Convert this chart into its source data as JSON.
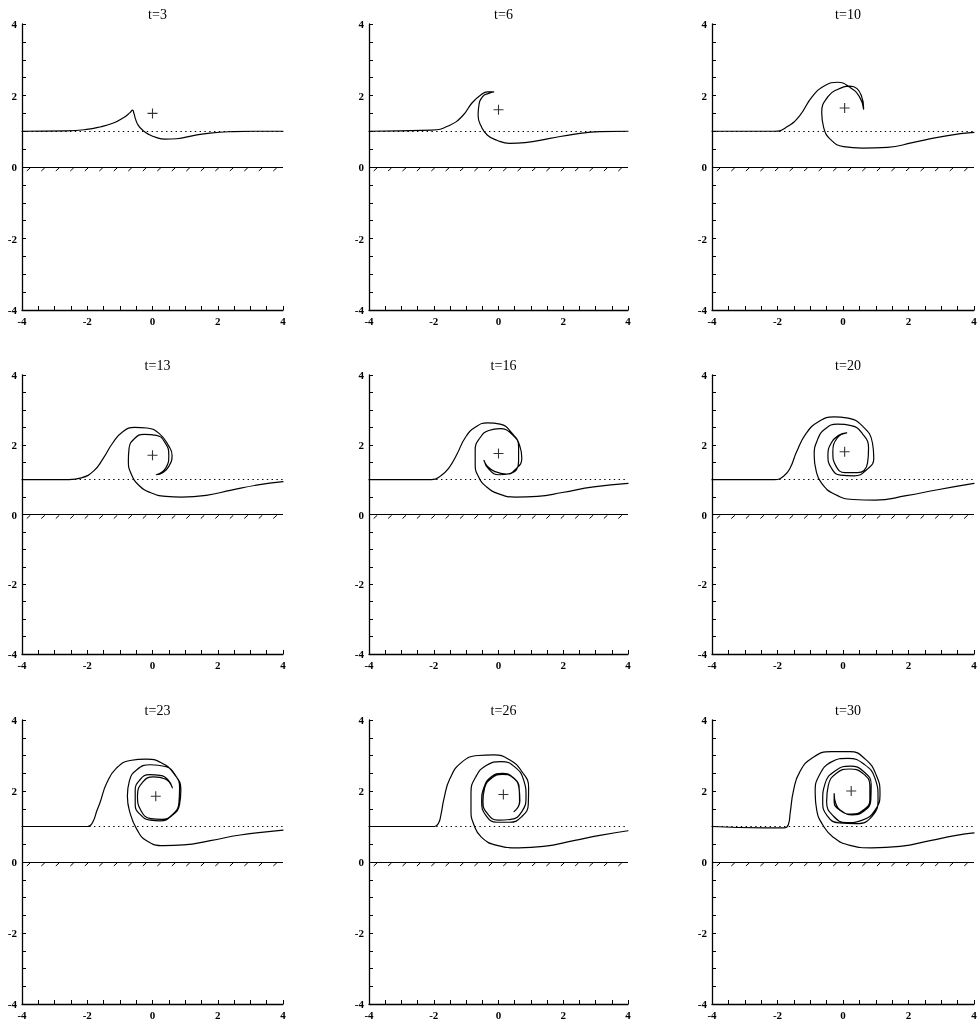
{
  "chart_data": [
    {
      "type": "line",
      "title": "t=3",
      "xlim": [
        -4,
        4
      ],
      "ylim": [
        -4,
        4
      ],
      "marker": "none",
      "xticks": [
        -4,
        {
          "value": -3.5,
          "label": null
        },
        {
          "value": -3,
          "label": null
        },
        {
          "value": -2.5,
          "label": null
        },
        -2,
        {
          "value": -1.5,
          "label": null
        },
        {
          "value": -1,
          "label": null
        },
        {
          "value": -0.5,
          "label": null
        },
        0,
        {
          "value": 0.5,
          "label": null
        },
        {
          "value": 1,
          "label": null
        },
        {
          "value": 1.5,
          "label": null
        },
        2,
        {
          "value": 2.5,
          "label": null
        },
        {
          "value": 3,
          "label": null
        },
        {
          "value": 3.5,
          "label": null
        },
        4
      ],
      "yticks": [
        -4,
        {
          "value": -3.5,
          "label": null
        },
        {
          "value": -3,
          "label": null
        },
        {
          "value": -2.5,
          "label": null
        },
        -2,
        {
          "value": -1.5,
          "label": null
        },
        {
          "value": -1,
          "label": null
        },
        {
          "value": -0.5,
          "label": null
        },
        0,
        {
          "value": 0.5,
          "label": null
        },
        {
          "value": 1,
          "label": null
        },
        {
          "value": 1.5,
          "label": null
        },
        2,
        {
          "value": 2.5,
          "label": null
        },
        {
          "value": 3,
          "label": null
        },
        {
          "value": 3.5,
          "label": null
        },
        4
      ],
      "series": [
        {
          "color": "#000000",
          "x": [
            -4,
            -2.63,
            -2.02,
            -1.61,
            -1.2,
            -0.89,
            -0.69,
            -0.61,
            -0.57,
            -0.52,
            -0.44,
            -0.3,
            -0.13,
            0.13,
            0.38,
            0.74,
            1.25,
            1.76,
            2.48,
            3.09,
            4
          ],
          "values": [
            1,
            1.01,
            1.05,
            1.12,
            1.23,
            1.38,
            1.52,
            1.59,
            1.5,
            1.34,
            1.17,
            1.03,
            0.92,
            0.82,
            0.78,
            0.79,
            0.88,
            0.95,
            0.99,
            1,
            1
          ]
        },
        {
          "type": "scatter",
          "marker": "cross",
          "color": "#000000",
          "x": [
            0
          ],
          "values": [
            1.5
          ]
        }
      ],
      "ref_lines": [
        {
          "axis": "y",
          "value": 1,
          "line_style": "dotted"
        },
        {
          "axis": "y",
          "value": 0,
          "line_style": "solid"
        }
      ]
    },
    {
      "type": "line",
      "title": "t=6",
      "xlim": [
        -4,
        4
      ],
      "ylim": [
        -4,
        4
      ],
      "marker": "none",
      "xticks": [
        -4,
        {
          "value": -3.5,
          "label": null
        },
        {
          "value": -3,
          "label": null
        },
        {
          "value": -2.5,
          "label": null
        },
        -2,
        {
          "value": -1.5,
          "label": null
        },
        {
          "value": -1,
          "label": null
        },
        {
          "value": -0.5,
          "label": null
        },
        0,
        {
          "value": 0.5,
          "label": null
        },
        {
          "value": 1,
          "label": null
        },
        {
          "value": 1.5,
          "label": null
        },
        2,
        {
          "value": 2.5,
          "label": null
        },
        {
          "value": 3,
          "label": null
        },
        {
          "value": 3.5,
          "label": null
        },
        4
      ],
      "yticks": [
        -4,
        {
          "value": -3.5,
          "label": null
        },
        {
          "value": -3,
          "label": null
        },
        {
          "value": -2.5,
          "label": null
        },
        -2,
        {
          "value": -1.5,
          "label": null
        },
        {
          "value": -1,
          "label": null
        },
        {
          "value": -0.5,
          "label": null
        },
        0,
        {
          "value": 0.5,
          "label": null
        },
        {
          "value": 1,
          "label": null
        },
        {
          "value": 1.5,
          "label": null
        },
        2,
        {
          "value": 2.5,
          "label": null
        },
        {
          "value": 3,
          "label": null
        },
        {
          "value": 3.5,
          "label": null
        },
        4
      ],
      "series": [
        {
          "color": "#000000",
          "x": [
            -4,
            -2.07,
            -1.5,
            -1.1,
            -0.82,
            -0.53,
            -0.34,
            -0.15,
            -0.3,
            -0.49,
            -0.61,
            -0.63,
            -0.53,
            -0.34,
            -0.05,
            0.34,
            0.82,
            1.59,
            2.36,
            3.13,
            4
          ],
          "values": [
            1,
            1.03,
            1.17,
            1.44,
            1.79,
            2.03,
            2.1,
            2.1,
            2.06,
            1.97,
            1.7,
            1.44,
            1.13,
            0.89,
            0.75,
            0.66,
            0.68,
            0.8,
            0.92,
            0.99,
            1
          ]
        },
        {
          "type": "scatter",
          "marker": "cross",
          "color": "#000000",
          "x": [
            0
          ],
          "values": [
            1.6
          ]
        }
      ],
      "ref_lines": [
        {
          "axis": "y",
          "value": 1,
          "line_style": "dotted"
        },
        {
          "axis": "y",
          "value": 0,
          "line_style": "solid"
        }
      ]
    },
    {
      "type": "line",
      "title": "t=10",
      "xlim": [
        -4,
        4
      ],
      "ylim": [
        -4,
        4
      ],
      "marker": "none",
      "xticks": [
        -4,
        {
          "value": -3.5,
          "label": null
        },
        {
          "value": -3,
          "label": null
        },
        {
          "value": -2.5,
          "label": null
        },
        -2,
        {
          "value": -1.5,
          "label": null
        },
        {
          "value": -1,
          "label": null
        },
        {
          "value": -0.5,
          "label": null
        },
        0,
        {
          "value": 0.5,
          "label": null
        },
        {
          "value": 1,
          "label": null
        },
        {
          "value": 1.5,
          "label": null
        },
        2,
        {
          "value": 2.5,
          "label": null
        },
        {
          "value": 3,
          "label": null
        },
        {
          "value": 3.5,
          "label": null
        },
        4
      ],
      "yticks": [
        -4,
        {
          "value": -3.5,
          "label": null
        },
        {
          "value": -3,
          "label": null
        },
        {
          "value": -2.5,
          "label": null
        },
        -2,
        {
          "value": -1.5,
          "label": null
        },
        {
          "value": -1,
          "label": null
        },
        {
          "value": -0.5,
          "label": null
        },
        0,
        {
          "value": 0.5,
          "label": null
        },
        {
          "value": 1,
          "label": null
        },
        {
          "value": 1.5,
          "label": null
        },
        2,
        {
          "value": 2.5,
          "label": null
        },
        {
          "value": 3,
          "label": null
        },
        {
          "value": 3.5,
          "label": null
        },
        4
      ],
      "series": [
        {
          "color": "#000000",
          "x": [
            -4,
            -2.09,
            -1.7,
            -1.32,
            -0.94,
            -0.55,
            -0.17,
            0.21,
            0.5,
            0.63,
            0.56,
            0.21,
            -0.17,
            -0.46,
            -0.65,
            -0.59,
            -0.36,
            0.02,
            0.59,
            1.36,
            2.12,
            2.89,
            3.66,
            4
          ],
          "values": [
            1,
            1,
            1.13,
            1.44,
            1.97,
            2.28,
            2.37,
            2.23,
            1.97,
            1.62,
            2,
            2.26,
            2.17,
            1.97,
            1.53,
            1.1,
            0.75,
            0.57,
            0.53,
            0.55,
            0.68,
            0.83,
            0.94,
            0.97
          ]
        },
        {
          "type": "scatter",
          "marker": "cross",
          "color": "#000000",
          "x": [
            0.05
          ],
          "values": [
            1.65
          ]
        }
      ],
      "ref_lines": [
        {
          "axis": "y",
          "value": 1,
          "line_style": "dotted"
        },
        {
          "axis": "y",
          "value": 0,
          "line_style": "solid"
        }
      ]
    },
    {
      "type": "line",
      "title": "t=13",
      "xlim": [
        -4,
        4
      ],
      "ylim": [
        -4,
        4
      ],
      "marker": "none",
      "xticks": [
        -4,
        {
          "value": -3.5,
          "label": null
        },
        {
          "value": -3,
          "label": null
        },
        {
          "value": -2.5,
          "label": null
        },
        -2,
        {
          "value": -1.5,
          "label": null
        },
        {
          "value": -1,
          "label": null
        },
        {
          "value": -0.5,
          "label": null
        },
        0,
        {
          "value": 0.5,
          "label": null
        },
        {
          "value": 1,
          "label": null
        },
        {
          "value": 1.5,
          "label": null
        },
        2,
        {
          "value": 2.5,
          "label": null
        },
        {
          "value": 3,
          "label": null
        },
        {
          "value": 3.5,
          "label": null
        },
        4
      ],
      "yticks": [
        -4,
        {
          "value": -3.5,
          "label": null
        },
        {
          "value": -3,
          "label": null
        },
        {
          "value": -2.5,
          "label": null
        },
        -2,
        {
          "value": -1.5,
          "label": null
        },
        {
          "value": -1,
          "label": null
        },
        {
          "value": -0.5,
          "label": null
        },
        0,
        {
          "value": 0.5,
          "label": null
        },
        {
          "value": 1,
          "label": null
        },
        {
          "value": 1.5,
          "label": null
        },
        2,
        {
          "value": 2.5,
          "label": null
        },
        {
          "value": 3,
          "label": null
        },
        {
          "value": 3.5,
          "label": null
        },
        4
      ],
      "series": [
        {
          "color": "#000000",
          "x": [
            -4,
            -2.56,
            -2.18,
            -1.8,
            -1.51,
            -1.22,
            -0.93,
            -0.55,
            -0.17,
            0.21,
            0.5,
            0.6,
            0.5,
            0.31,
            0.12,
            0.41,
            0.5,
            0.39,
            0.12,
            -0.26,
            -0.55,
            -0.72,
            -0.74,
            -0.65,
            -0.42,
            -0.07,
            0.41,
            0.89,
            1.65,
            2.42,
            3.18,
            4
          ],
          "values": [
            1,
            1,
            1.05,
            1.25,
            1.61,
            2.05,
            2.36,
            2.5,
            2.48,
            2.32,
            1.96,
            1.7,
            1.38,
            1.2,
            1.14,
            1.34,
            1.7,
            2.05,
            2.27,
            2.3,
            2.18,
            1.88,
            1.52,
            1.16,
            0.84,
            0.63,
            0.52,
            0.5,
            0.55,
            0.7,
            0.84,
            0.94
          ]
        },
        {
          "type": "scatter",
          "marker": "cross",
          "color": "#000000",
          "x": [
            0
          ],
          "values": [
            1.7
          ]
        }
      ],
      "ref_lines": [
        {
          "axis": "y",
          "value": 1,
          "line_style": "dotted"
        },
        {
          "axis": "y",
          "value": 0,
          "line_style": "solid"
        }
      ]
    },
    {
      "type": "line",
      "title": "t=16",
      "xlim": [
        -4,
        4
      ],
      "ylim": [
        -4,
        4
      ],
      "marker": "none",
      "xticks": [
        -4,
        {
          "value": -3.5,
          "label": null
        },
        {
          "value": -3,
          "label": null
        },
        {
          "value": -2.5,
          "label": null
        },
        -2,
        {
          "value": -1.5,
          "label": null
        },
        {
          "value": -1,
          "label": null
        },
        {
          "value": -0.5,
          "label": null
        },
        0,
        {
          "value": 0.5,
          "label": null
        },
        {
          "value": 1,
          "label": null
        },
        {
          "value": 1.5,
          "label": null
        },
        2,
        {
          "value": 2.5,
          "label": null
        },
        {
          "value": 3,
          "label": null
        },
        {
          "value": 3.5,
          "label": null
        },
        4
      ],
      "yticks": [
        -4,
        {
          "value": -3.5,
          "label": null
        },
        {
          "value": -3,
          "label": null
        },
        {
          "value": -2.5,
          "label": null
        },
        -2,
        {
          "value": -1.5,
          "label": null
        },
        {
          "value": -1,
          "label": null
        },
        {
          "value": -0.5,
          "label": null
        },
        0,
        {
          "value": 0.5,
          "label": null
        },
        {
          "value": 1,
          "label": null
        },
        {
          "value": 1.5,
          "label": null
        },
        2,
        {
          "value": 2.5,
          "label": null
        },
        {
          "value": 3,
          "label": null
        },
        {
          "value": 3.5,
          "label": null
        },
        4
      ],
      "series": [
        {
          "color": "#000000",
          "x": [
            -4,
            -2.07,
            -1.78,
            -1.53,
            -1.3,
            -1.01,
            -0.72,
            -0.34,
            0.05,
            0.43,
            0.66,
            0.72,
            0.53,
            0.24,
            -0.11,
            -0.34,
            -0.45,
            -0.3,
            0.01,
            0.39,
            0.62,
            0.62,
            0.39,
            0.05,
            -0.3,
            -0.57,
            -0.72,
            -0.72,
            -0.61,
            -0.38,
            0.01,
            0.53,
            1.2,
            1.97,
            2.94,
            4
          ],
          "values": [
            1,
            1,
            1.11,
            1.34,
            1.7,
            2.23,
            2.5,
            2.63,
            2.59,
            2.32,
            1.96,
            1.61,
            1.3,
            1.16,
            1.23,
            1.38,
            1.55,
            1.3,
            1.14,
            1.18,
            1.52,
            1.96,
            2.32,
            2.46,
            2.41,
            2.2,
            1.84,
            1.43,
            1.07,
            0.8,
            0.59,
            0.5,
            0.52,
            0.63,
            0.79,
            0.89
          ]
        },
        {
          "type": "scatter",
          "marker": "cross",
          "color": "#000000",
          "x": [
            0
          ],
          "values": [
            1.75
          ]
        }
      ],
      "ref_lines": [
        {
          "axis": "y",
          "value": 1,
          "line_style": "dotted"
        },
        {
          "axis": "y",
          "value": 0,
          "line_style": "solid"
        }
      ]
    },
    {
      "type": "line",
      "title": "t=20",
      "xlim": [
        -4,
        4
      ],
      "ylim": [
        -4,
        4
      ],
      "marker": "none",
      "xticks": [
        -4,
        {
          "value": -3.5,
          "label": null
        },
        {
          "value": -3,
          "label": null
        },
        {
          "value": -2.5,
          "label": null
        },
        -2,
        {
          "value": -1.5,
          "label": null
        },
        {
          "value": -1,
          "label": null
        },
        {
          "value": -0.5,
          "label": null
        },
        0,
        {
          "value": 0.5,
          "label": null
        },
        {
          "value": 1,
          "label": null
        },
        {
          "value": 1.5,
          "label": null
        },
        2,
        {
          "value": 2.5,
          "label": null
        },
        {
          "value": 3,
          "label": null
        },
        {
          "value": 3.5,
          "label": null
        },
        4
      ],
      "yticks": [
        -4,
        {
          "value": -3.5,
          "label": null
        },
        {
          "value": -3,
          "label": null
        },
        {
          "value": -2.5,
          "label": null
        },
        -2,
        {
          "value": -1.5,
          "label": null
        },
        {
          "value": -1,
          "label": null
        },
        {
          "value": -0.5,
          "label": null
        },
        0,
        {
          "value": 0.5,
          "label": null
        },
        {
          "value": 1,
          "label": null
        },
        {
          "value": 1.5,
          "label": null
        },
        2,
        {
          "value": 2.5,
          "label": null
        },
        {
          "value": 3,
          "label": null
        },
        {
          "value": 3.5,
          "label": null
        },
        4
      ],
      "series": [
        {
          "color": "#000000",
          "x": [
            -4,
            -2.09,
            -1.8,
            -1.61,
            -1.42,
            -1.13,
            -0.75,
            -0.27,
            0.11,
            0.59,
            0.9,
            0.94,
            0.73,
            0.34,
            -0.08,
            -0.36,
            -0.46,
            -0.36,
            -0.13,
            0.11,
            -0.17,
            -0.31,
            -0.21,
            0.06,
            0.44,
            0.75,
            0.78,
            0.59,
            0.25,
            -0.17,
            -0.55,
            -0.78,
            -0.88,
            -0.82,
            -0.65,
            -0.27,
            0.31,
            0.98,
            1.93,
            2.89,
            4
          ],
          "values": [
            1,
            1,
            1.11,
            1.34,
            1.79,
            2.32,
            2.66,
            2.8,
            2.77,
            2.54,
            2.05,
            1.61,
            1.29,
            1.11,
            1.13,
            1.34,
            1.7,
            2.05,
            2.27,
            2.34,
            2.2,
            1.79,
            1.38,
            1.2,
            1.2,
            1.48,
            1.91,
            2.32,
            2.55,
            2.59,
            2.45,
            2.14,
            1.7,
            1.25,
            0.89,
            0.59,
            0.43,
            0.41,
            0.54,
            0.71,
            0.89
          ]
        },
        {
          "type": "scatter",
          "marker": "cross",
          "color": "#000000",
          "x": [
            0.05
          ],
          "values": [
            1.8
          ]
        }
      ],
      "ref_lines": [
        {
          "axis": "y",
          "value": 1,
          "line_style": "dotted"
        },
        {
          "axis": "y",
          "value": 0,
          "line_style": "solid"
        }
      ]
    },
    {
      "type": "line",
      "title": "t=23",
      "xlim": [
        -4,
        4
      ],
      "ylim": [
        -4,
        4
      ],
      "marker": "none",
      "xticks": [
        -4,
        {
          "value": -3.5,
          "label": null
        },
        {
          "value": -3,
          "label": null
        },
        {
          "value": -2.5,
          "label": null
        },
        -2,
        {
          "value": -1.5,
          "label": null
        },
        {
          "value": -1,
          "label": null
        },
        {
          "value": -0.5,
          "label": null
        },
        0,
        {
          "value": 0.5,
          "label": null
        },
        {
          "value": 1,
          "label": null
        },
        {
          "value": 1.5,
          "label": null
        },
        2,
        {
          "value": 2.5,
          "label": null
        },
        {
          "value": 3,
          "label": null
        },
        {
          "value": 3.5,
          "label": null
        },
        4
      ],
      "yticks": [
        -4,
        {
          "value": -3.5,
          "label": null
        },
        {
          "value": -3,
          "label": null
        },
        {
          "value": -2.5,
          "label": null
        },
        -2,
        {
          "value": -1.5,
          "label": null
        },
        {
          "value": -1,
          "label": null
        },
        {
          "value": -0.5,
          "label": null
        },
        0,
        {
          "value": 0.5,
          "label": null
        },
        {
          "value": 1,
          "label": null
        },
        {
          "value": 1.5,
          "label": null
        },
        2,
        {
          "value": 2.5,
          "label": null
        },
        {
          "value": 3,
          "label": null
        },
        {
          "value": 3.5,
          "label": null
        },
        4
      ],
      "series": [
        {
          "color": "#000000",
          "x": [
            -4,
            -1.99,
            -1.84,
            -1.7,
            -1.61,
            -1.4,
            -1.1,
            -0.69,
            -0.18,
            0.28,
            0.64,
            0.87,
            0.83,
            0.59,
            0.23,
            -0.07,
            -0.38,
            -0.53,
            -0.53,
            -0.4,
            -0.09,
            0.23,
            0.49,
            0.61,
            0.39,
            0.03,
            -0.3,
            -0.46,
            -0.36,
            -0.05,
            0.28,
            0.64,
            0.81,
            0.83,
            0.69,
            0.39,
            -0.07,
            -0.48,
            -0.71,
            -0.77,
            -0.69,
            -0.48,
            -0.18,
            0.34,
            0.95,
            1.77,
            2.69,
            4
          ],
          "values": [
            1,
            1,
            1.11,
            1.46,
            1.67,
            2.23,
            2.65,
            2.86,
            2.9,
            2.79,
            2.51,
            2.04,
            1.62,
            1.3,
            1.16,
            1.18,
            1.34,
            1.62,
            2,
            2.3,
            2.46,
            2.44,
            2.3,
            2.09,
            2.34,
            2.4,
            2.25,
            1.87,
            1.46,
            1.22,
            1.2,
            1.36,
            1.67,
            2.09,
            2.46,
            2.69,
            2.74,
            2.6,
            2.28,
            1.86,
            1.39,
            0.92,
            0.6,
            0.46,
            0.48,
            0.6,
            0.76,
            0.9
          ]
        },
        {
          "type": "scatter",
          "marker": "cross",
          "color": "#000000",
          "x": [
            0.1
          ],
          "values": [
            1.85
          ]
        }
      ],
      "ref_lines": [
        {
          "axis": "y",
          "value": 1,
          "line_style": "dotted"
        },
        {
          "axis": "y",
          "value": 0,
          "line_style": "solid"
        }
      ]
    },
    {
      "type": "line",
      "title": "t=26",
      "xlim": [
        -4,
        4
      ],
      "ylim": [
        -4,
        4
      ],
      "marker": "none",
      "xticks": [
        -4,
        {
          "value": -3.5,
          "label": null
        },
        {
          "value": -3,
          "label": null
        },
        {
          "value": -2.5,
          "label": null
        },
        -2,
        {
          "value": -1.5,
          "label": null
        },
        {
          "value": -1,
          "label": null
        },
        {
          "value": -0.5,
          "label": null
        },
        0,
        {
          "value": 0.5,
          "label": null
        },
        {
          "value": 1,
          "label": null
        },
        {
          "value": 1.5,
          "label": null
        },
        2,
        {
          "value": 2.5,
          "label": null
        },
        {
          "value": 3,
          "label": null
        },
        {
          "value": 3.5,
          "label": null
        },
        4
      ],
      "yticks": [
        -4,
        {
          "value": -3.5,
          "label": null
        },
        {
          "value": -3,
          "label": null
        },
        {
          "value": -2.5,
          "label": null
        },
        -2,
        {
          "value": -1.5,
          "label": null
        },
        {
          "value": -1,
          "label": null
        },
        {
          "value": -0.5,
          "label": null
        },
        0,
        {
          "value": 0.5,
          "label": null
        },
        {
          "value": 1,
          "label": null
        },
        {
          "value": 1.5,
          "label": null
        },
        2,
        {
          "value": 2.5,
          "label": null
        },
        {
          "value": 3,
          "label": null
        },
        {
          "value": 3.5,
          "label": null
        },
        4
      ],
      "series": [
        {
          "color": "#000000",
          "x": [
            -4,
            -1.98,
            -1.85,
            -1.78,
            -1.68,
            -1.5,
            -1.15,
            -0.63,
            -0.15,
            0.34,
            0.72,
            0.93,
            0.92,
            0.72,
            0.34,
            -0.05,
            -0.38,
            -0.52,
            -0.45,
            -0.22,
            0.12,
            0.45,
            0.64,
            0.65,
            0.48,
            0.66,
            0.63,
            0.44,
            0.12,
            -0.2,
            -0.43,
            -0.48,
            -0.34,
            -0.02,
            0.38,
            0.72,
            0.85,
            0.78,
            0.5,
            0.08,
            -0.38,
            -0.7,
            -0.85,
            -0.85,
            -0.76,
            -0.53,
            -0.05,
            0.62,
            1.39,
            2.36,
            3.13,
            4
          ],
          "values": [
            1,
            1,
            1.1,
            1.32,
            1.8,
            2.35,
            2.8,
            3,
            3.02,
            2.88,
            2.55,
            2.1,
            1.62,
            1.28,
            1.12,
            1.12,
            1.3,
            1.7,
            2.1,
            2.4,
            2.5,
            2.38,
            2.08,
            1.7,
            1.42,
            1.72,
            2.1,
            2.38,
            2.47,
            2.37,
            2.08,
            1.7,
            1.36,
            1.18,
            1.2,
            1.42,
            1.85,
            2.3,
            2.68,
            2.83,
            2.72,
            2.4,
            1.95,
            1.45,
            1.05,
            0.7,
            0.47,
            0.4,
            0.44,
            0.61,
            0.75,
            0.88
          ]
        },
        {
          "type": "scatter",
          "marker": "cross",
          "color": "#000000",
          "x": [
            0.15
          ],
          "values": [
            1.9
          ]
        }
      ],
      "ref_lines": [
        {
          "axis": "y",
          "value": 1,
          "line_style": "dotted"
        },
        {
          "axis": "y",
          "value": 0,
          "line_style": "solid"
        }
      ]
    },
    {
      "type": "line",
      "title": "t=30",
      "xlim": [
        -4,
        4
      ],
      "ylim": [
        -4,
        4
      ],
      "marker": "none",
      "xticks": [
        -4,
        {
          "value": -3.5,
          "label": null
        },
        {
          "value": -3,
          "label": null
        },
        {
          "value": -2.5,
          "label": null
        },
        -2,
        {
          "value": -1.5,
          "label": null
        },
        {
          "value": -1,
          "label": null
        },
        {
          "value": -0.5,
          "label": null
        },
        0,
        {
          "value": 0.5,
          "label": null
        },
        {
          "value": 1,
          "label": null
        },
        {
          "value": 1.5,
          "label": null
        },
        2,
        {
          "value": 2.5,
          "label": null
        },
        {
          "value": 3,
          "label": null
        },
        {
          "value": 3.5,
          "label": null
        },
        4
      ],
      "yticks": [
        -4,
        {
          "value": -3.5,
          "label": null
        },
        {
          "value": -3,
          "label": null
        },
        {
          "value": -2.5,
          "label": null
        },
        -2,
        {
          "value": -1.5,
          "label": null
        },
        {
          "value": -1,
          "label": null
        },
        {
          "value": -0.5,
          "label": null
        },
        0,
        {
          "value": 0.5,
          "label": null
        },
        {
          "value": 1,
          "label": null
        },
        {
          "value": 1.5,
          "label": null
        },
        2,
        {
          "value": 2.5,
          "label": null
        },
        {
          "value": 3,
          "label": null
        },
        {
          "value": 3.5,
          "label": null
        },
        4
      ],
      "series": [
        {
          "color": "#000000",
          "x": [
            -4,
            -2.09,
            -1.8,
            -1.67,
            -1.61,
            -1.51,
            -1.32,
            -0.94,
            -0.36,
            0.21,
            0.69,
            1.01,
            1.13,
            0.98,
            0.59,
            0.11,
            -0.3,
            -0.5,
            -0.45,
            -0.2,
            0.2,
            0.6,
            0.82,
            0.82,
            0.6,
            0.25,
            -0.08,
            -0.27,
            -0.27,
            -0.22,
            -0.02,
            0.28,
            0.62,
            0.85,
            0.86,
            0.63,
            0.22,
            -0.22,
            -0.55,
            -0.62,
            -0.48,
            -0.12,
            0.4,
            0.9,
            1.07,
            0.98,
            0.65,
            0.15,
            -0.35,
            -0.72,
            -0.85,
            -0.8,
            -0.62,
            -0.3,
            0.21,
            0.88,
            1.74,
            2.7,
            3.46,
            4
          ],
          "values": [
            1,
            0.96,
            0.96,
            1.05,
            1.4,
            2.02,
            2.54,
            2.93,
            3.11,
            3.11,
            2.89,
            2.46,
            1.93,
            1.46,
            1.18,
            1.11,
            1.3,
            1.7,
            2.15,
            2.5,
            2.62,
            2.5,
            2.15,
            1.75,
            1.45,
            1.35,
            1.45,
            1.7,
            1.93,
            1.65,
            1.42,
            1.33,
            1.42,
            1.75,
            2.18,
            2.55,
            2.7,
            2.58,
            2.2,
            1.72,
            1.3,
            1.1,
            1.08,
            1.3,
            1.8,
            2.35,
            2.75,
            2.92,
            2.82,
            2.45,
            1.95,
            1.45,
            1.05,
            0.7,
            0.47,
            0.4,
            0.44,
            0.61,
            0.75,
            0.82
          ]
        },
        {
          "type": "scatter",
          "marker": "cross",
          "color": "#000000",
          "x": [
            0.25
          ],
          "values": [
            2
          ]
        }
      ],
      "ref_lines": [
        {
          "axis": "y",
          "value": 1,
          "line_style": "dotted"
        },
        {
          "axis": "y",
          "value": 0,
          "line_style": "solid"
        }
      ]
    }
  ]
}
